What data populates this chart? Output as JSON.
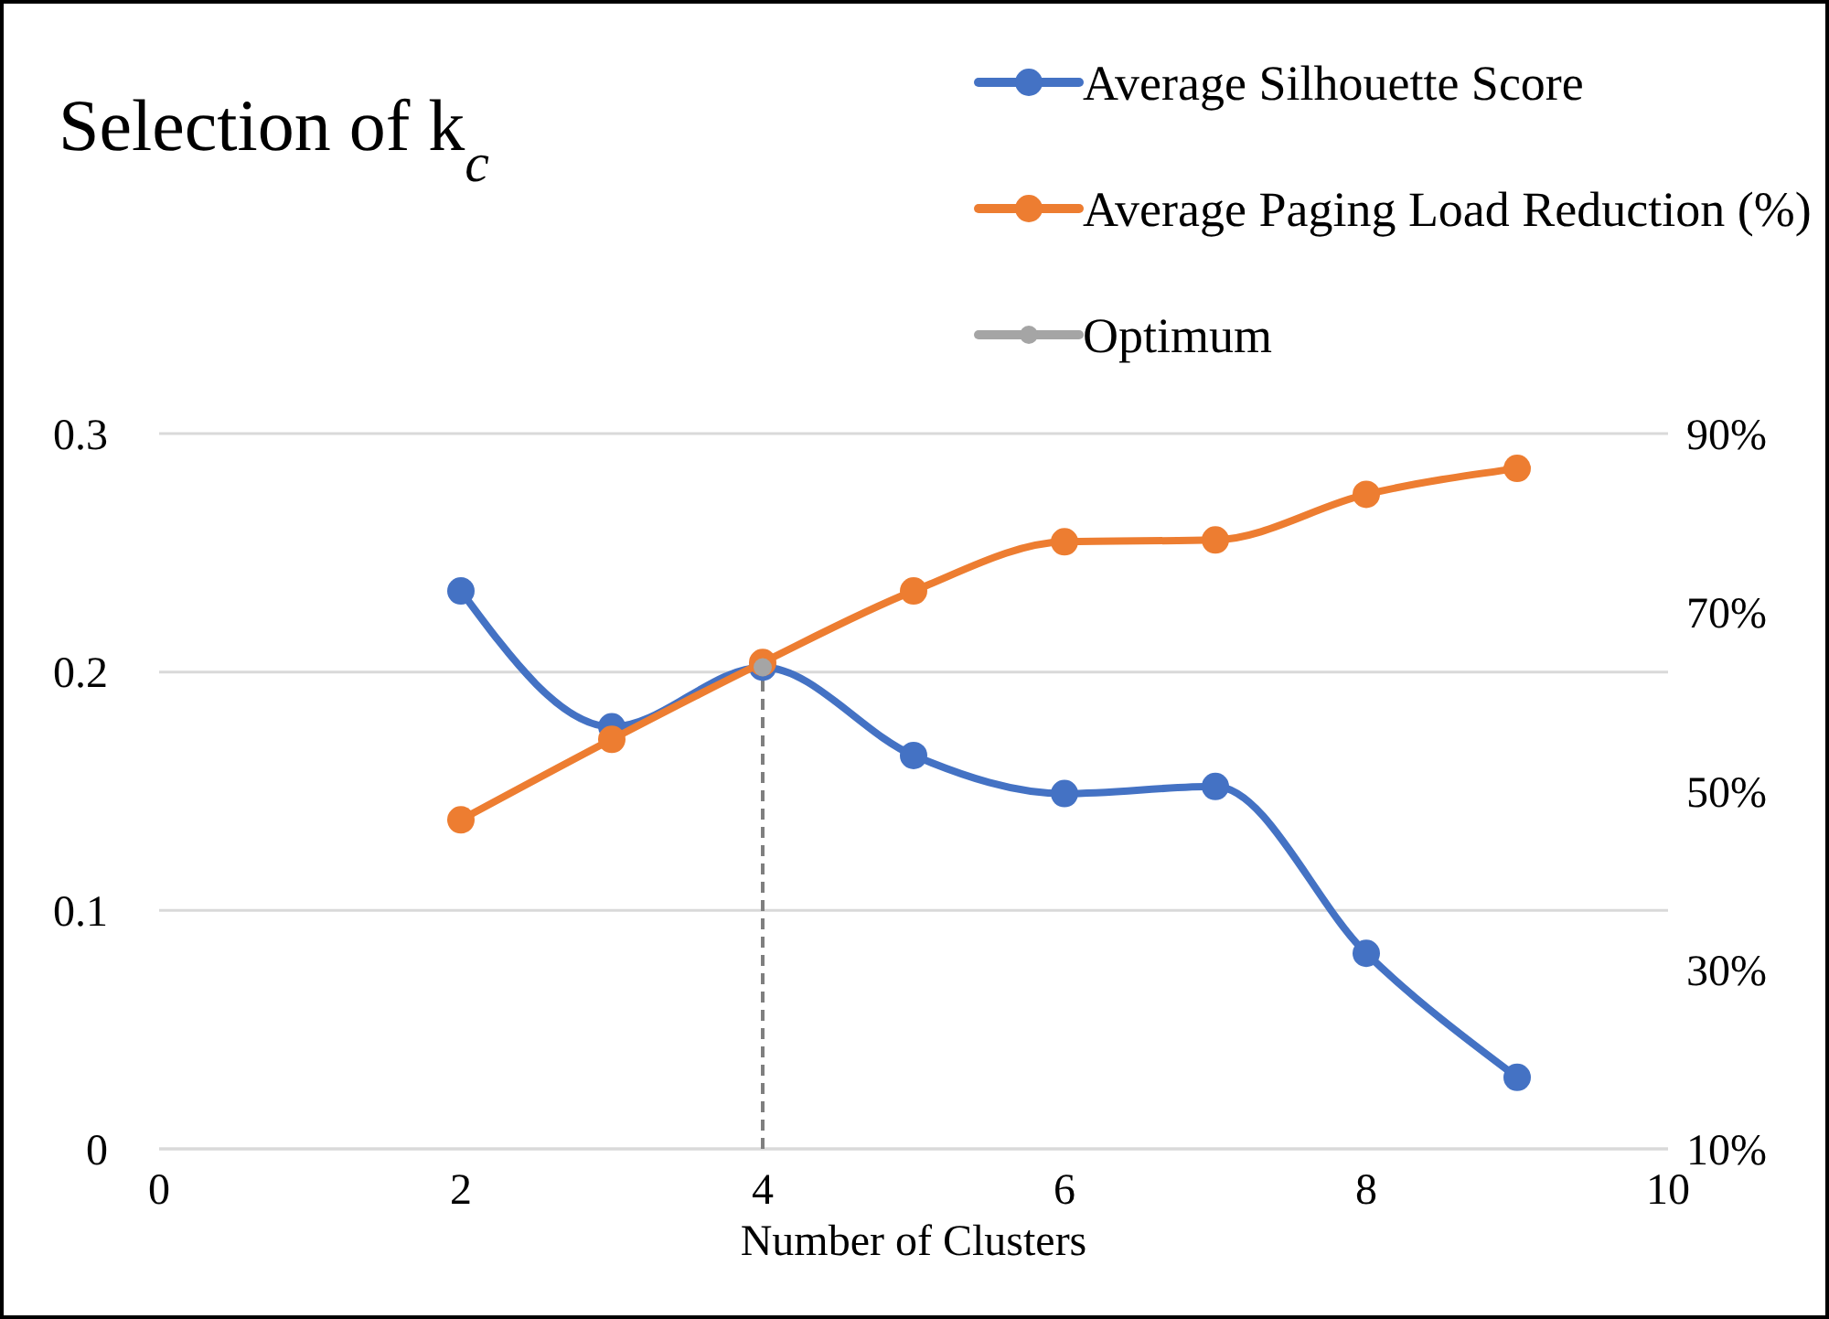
{
  "chart_data": {
    "type": "line",
    "title": "Selection of k$_{c}$",
    "xlabel": "Number of Clusters",
    "x": [
      2,
      3,
      4,
      5,
      6,
      7,
      8,
      9
    ],
    "series": [
      {
        "name": "Average Silhouette Score",
        "color": "#4472c4",
        "values": [
          0.234,
          0.177,
          0.202,
          0.165,
          0.149,
          0.152,
          0.082,
          0.03
        ]
      },
      {
        "name": "Average Paging Load Reduction (%)",
        "color": "#ed7d31",
        "axis": "y2",
        "values": [
          46.8,
          55.8,
          64.4,
          72.4,
          77.9,
          78.1,
          83.2,
          86.1
        ]
      },
      {
        "name": "Optimum",
        "color": "#a5a5a5",
        "type": "scatter",
        "x": [
          4
        ],
        "values": [
          0.202
        ]
      }
    ],
    "xlim": [
      0,
      10
    ],
    "xticks": [
      0,
      2,
      4,
      6,
      8,
      10
    ],
    "ylim": [
      0,
      0.3
    ],
    "yticks": [
      0,
      0.1,
      0.2,
      0.3
    ],
    "y2lim": [
      10,
      90
    ],
    "y2ticks": [
      {
        "value": 10,
        "label": "10%"
      },
      {
        "value": 30,
        "label": "30%"
      },
      {
        "value": 50,
        "label": "50%"
      },
      {
        "value": 70,
        "label": "70%"
      },
      {
        "value": 90,
        "label": "90%"
      }
    ],
    "ref_lines": [
      {
        "axis": "x",
        "value": 4,
        "label": null,
        "color": "#7f7f7f",
        "line_style": "dashed"
      }
    ],
    "grid": "y",
    "legend": "top right",
    "marker": "circle",
    "line_style": "solid"
  }
}
